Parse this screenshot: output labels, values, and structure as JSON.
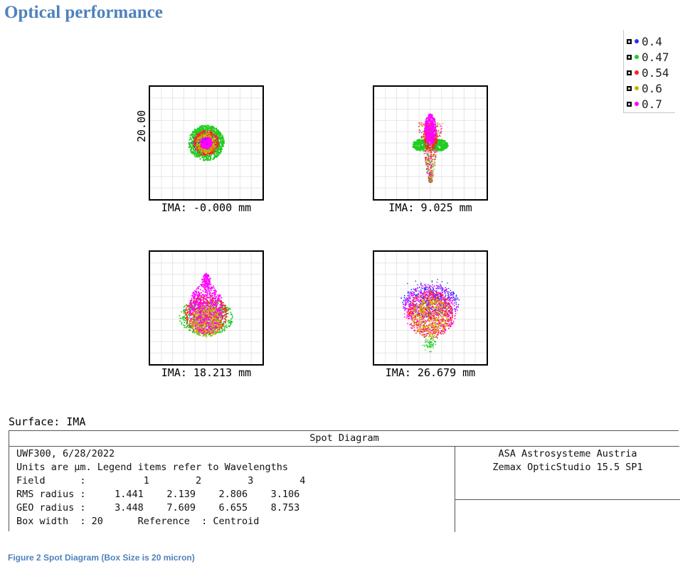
{
  "heading": "Optical performance",
  "legend": {
    "items": [
      {
        "label": "0.4",
        "color": "#2b2bff"
      },
      {
        "label": "0.47",
        "color": "#22cc22"
      },
      {
        "label": "0.54",
        "color": "#ff2020"
      },
      {
        "label": "0.6",
        "color": "#c9b400"
      },
      {
        "label": "0.7",
        "color": "#ff00ff"
      }
    ]
  },
  "diagram": {
    "scale_label": "20.00",
    "fields": [
      {
        "ima": "IMA: -0.000 mm"
      },
      {
        "ima": "IMA: 9.025 mm"
      },
      {
        "ima": "IMA: 18.213 mm"
      },
      {
        "ima": "IMA: 26.679 mm"
      }
    ]
  },
  "surface": "Surface: IMA",
  "table": {
    "title": "Spot Diagram",
    "lines": [
      "UWF300, 6/28/2022",
      "Units are µm. Legend items refer to Wavelengths",
      "Field      :          1        2        3        4",
      "RMS radius :     1.441    2.139    2.806    3.106",
      "GEO radius :     3.448    7.609    6.655    8.753",
      "Box width  : 20      Reference  : Centroid"
    ],
    "company": "ASA Astrosysteme Austria",
    "software": "Zemax OpticStudio 15.5 SP1"
  },
  "caption": "Figure 2 Spot Diagram (Box Size is 20 micron)"
}
